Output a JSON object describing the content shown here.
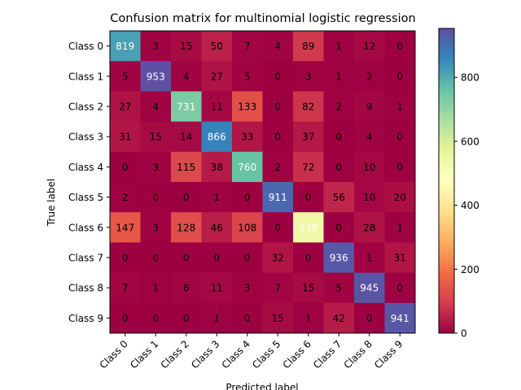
{
  "chart_data": {
    "type": "heatmap",
    "title": "Confusion matrix for multinomial logistic regression",
    "xlabel": "Predicted label",
    "ylabel": "True label",
    "x_categories": [
      "Class 0",
      "Class 1",
      "Class 2",
      "Class 3",
      "Class 4",
      "Class 5",
      "Class 6",
      "Class 7",
      "Class 8",
      "Class 9"
    ],
    "y_categories": [
      "Class 0",
      "Class 1",
      "Class 2",
      "Class 3",
      "Class 4",
      "Class 5",
      "Class 6",
      "Class 7",
      "Class 8",
      "Class 9"
    ],
    "values": [
      [
        819,
        3,
        15,
        50,
        7,
        4,
        89,
        1,
        12,
        0
      ],
      [
        5,
        953,
        4,
        27,
        5,
        0,
        3,
        1,
        2,
        0
      ],
      [
        27,
        4,
        731,
        11,
        133,
        0,
        82,
        2,
        9,
        1
      ],
      [
        31,
        15,
        14,
        866,
        33,
        0,
        37,
        0,
        4,
        0
      ],
      [
        0,
        3,
        115,
        38,
        760,
        2,
        72,
        0,
        10,
        0
      ],
      [
        2,
        0,
        0,
        1,
        0,
        911,
        0,
        56,
        10,
        20
      ],
      [
        147,
        3,
        128,
        46,
        108,
        0,
        539,
        0,
        28,
        1
      ],
      [
        0,
        0,
        0,
        0,
        0,
        32,
        0,
        936,
        1,
        31
      ],
      [
        7,
        1,
        6,
        11,
        3,
        7,
        15,
        5,
        945,
        0
      ],
      [
        0,
        0,
        0,
        1,
        0,
        15,
        1,
        42,
        0,
        941
      ]
    ],
    "colormap": "Spectral",
    "vmin": 0,
    "vmax": 953,
    "colorbar_ticks": [
      0,
      200,
      400,
      600,
      800
    ],
    "grid": false,
    "colorbar_position": "right"
  }
}
